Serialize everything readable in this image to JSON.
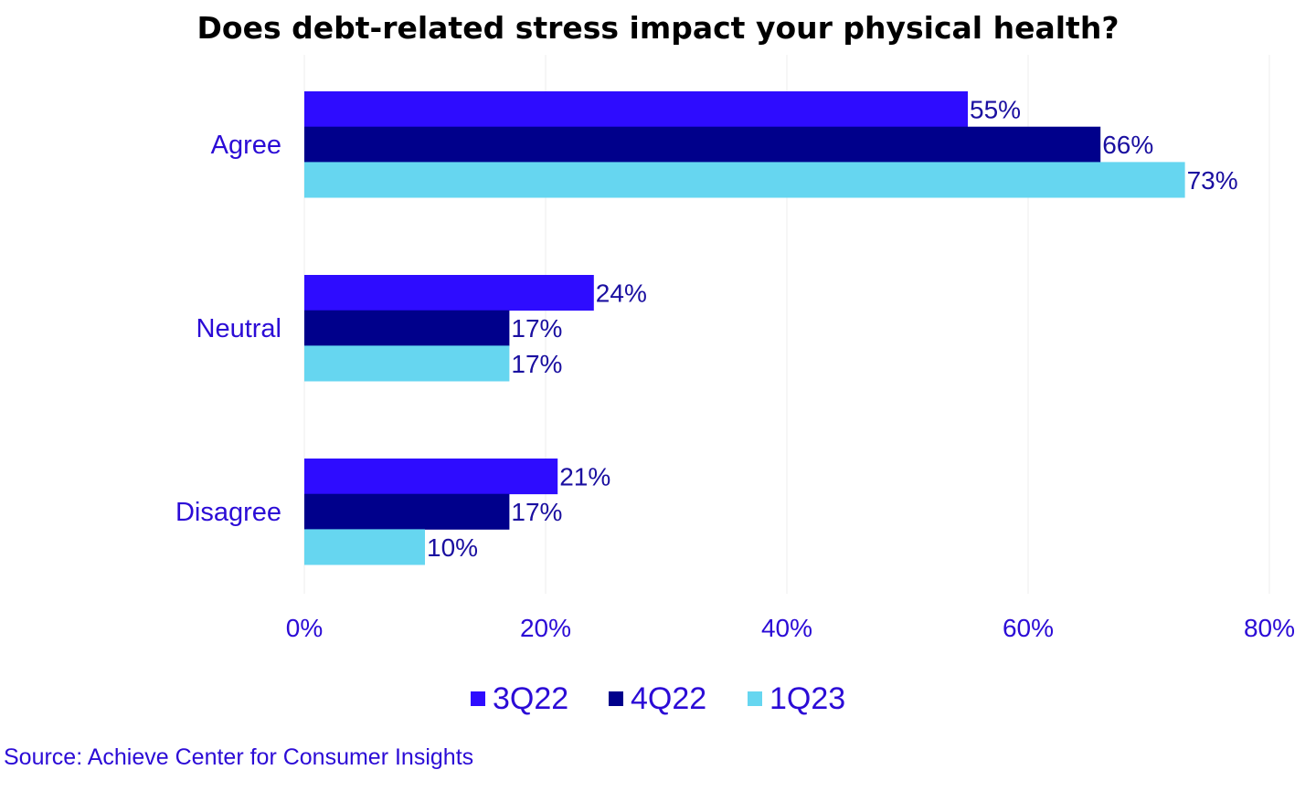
{
  "chart_data": {
    "type": "bar",
    "orientation": "horizontal",
    "title": "Does debt-related stress impact your physical health?",
    "categories": [
      "Agree",
      "Neutral",
      "Disagree"
    ],
    "series": [
      {
        "name": "3Q22",
        "color": "#2e0cff",
        "values": [
          55,
          24,
          21
        ]
      },
      {
        "name": "4Q22",
        "color": "#00008b",
        "values": [
          66,
          17,
          17
        ]
      },
      {
        "name": "1Q23",
        "color": "#66d6f0",
        "values": [
          73,
          17,
          10
        ]
      }
    ],
    "xlim": [
      0,
      80
    ],
    "xticks": [
      0,
      20,
      40,
      60,
      80
    ],
    "xtick_labels": [
      "0%",
      "20%",
      "40%",
      "60%",
      "80%"
    ],
    "value_suffix": "%",
    "xlabel": "",
    "ylabel": "",
    "grid": true,
    "legend_position": "bottom"
  },
  "source": "Source: Achieve Center for Consumer Insights"
}
